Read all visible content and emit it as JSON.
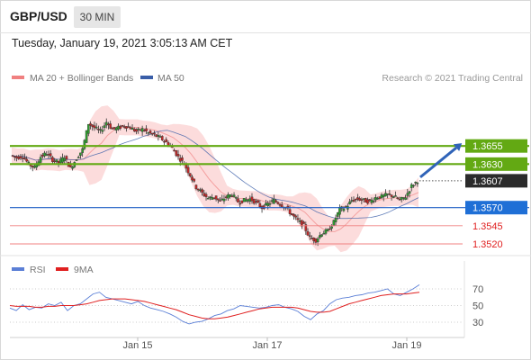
{
  "header": {
    "symbol": "GBP/USD",
    "interval": "30 MIN"
  },
  "timestamp": "Tuesday, January 19, 2021 3:05:13 AM CET",
  "chart_data": [
    {
      "type": "candlestick",
      "title": "",
      "legend": [
        {
          "name": "MA 20 + Bollinger Bands",
          "color": "#f08080"
        },
        {
          "name": "MA 50",
          "color": "#3a5ea8"
        }
      ],
      "legend_placement": "top-left",
      "watermark": "Research © 2021 Trading Central",
      "last_price": 1.3607,
      "ylim": [
        1.3505,
        1.3705
      ],
      "x_ticks": [
        "Jan 15",
        "Jan 17",
        "Jan 19"
      ],
      "levels": [
        {
          "label": "1.3655",
          "value": 1.3655,
          "kind": "resistance"
        },
        {
          "label": "1.3630",
          "value": 1.363,
          "kind": "resistance"
        },
        {
          "label": "1.3607",
          "value": 1.3607,
          "kind": "last"
        },
        {
          "label": "1.3570",
          "value": 1.357,
          "kind": "pivot"
        },
        {
          "label": "1.3545",
          "value": 1.3545,
          "kind": "support"
        },
        {
          "label": "1.3520",
          "value": 1.352,
          "kind": "support"
        }
      ],
      "price_path": [
        1.3642,
        1.3639,
        1.3641,
        1.363,
        1.3625,
        1.364,
        1.3645,
        1.3636,
        1.3632,
        1.364,
        1.3624,
        1.3638,
        1.365,
        1.3686,
        1.368,
        1.3675,
        1.3688,
        1.3678,
        1.368,
        1.3683,
        1.368,
        1.3675,
        1.3678,
        1.3673,
        1.367,
        1.3666,
        1.366,
        1.3652,
        1.364,
        1.363,
        1.3615,
        1.3598,
        1.359,
        1.3583,
        1.3585,
        1.3578,
        1.3585,
        1.3588,
        1.3578,
        1.358,
        1.3582,
        1.3577,
        1.357,
        1.3575,
        1.358,
        1.3575,
        1.357,
        1.356,
        1.3552,
        1.3545,
        1.3528,
        1.3525,
        1.3535,
        1.3538,
        1.355,
        1.3568,
        1.357,
        1.358,
        1.3582,
        1.358,
        1.3578,
        1.3584,
        1.3585,
        1.3588,
        1.3586,
        1.358,
        1.3585,
        1.36,
        1.3607
      ],
      "projection": {
        "from": 1.3607,
        "to": 1.3655
      }
    },
    {
      "type": "line",
      "title": "",
      "legend": [
        {
          "name": "RSI",
          "color": "#5b7fd6"
        },
        {
          "name": "9MA",
          "color": "#e02020"
        }
      ],
      "legend_placement": "top-left",
      "ylim": [
        20,
        80
      ],
      "y_ticks": [
        70,
        50,
        30
      ],
      "rsi": [
        47,
        44,
        51,
        45,
        48,
        47,
        52,
        50,
        54,
        44,
        50,
        52,
        58,
        64,
        66,
        60,
        58,
        56,
        54,
        52,
        55,
        50,
        47,
        45,
        43,
        40,
        36,
        31,
        28,
        30,
        31,
        34,
        38,
        40,
        44,
        46,
        50,
        49,
        48,
        47,
        48,
        50,
        51,
        48,
        46,
        43,
        37,
        33,
        40,
        44,
        52,
        57,
        59,
        60,
        62,
        63,
        65,
        66,
        68,
        70,
        64,
        62,
        66,
        70,
        75
      ],
      "ma9": [
        50,
        49,
        49,
        49,
        48,
        48,
        49,
        49,
        50,
        50,
        50,
        51,
        52,
        54,
        56,
        57,
        58,
        58,
        58,
        57,
        56,
        55,
        53,
        51,
        49,
        47,
        45,
        42,
        39,
        37,
        35,
        34,
        34,
        35,
        36,
        38,
        40,
        42,
        44,
        46,
        47,
        48,
        48,
        48,
        48,
        47,
        45,
        43,
        42,
        42,
        43,
        46,
        49,
        52,
        54,
        56,
        58,
        60,
        62,
        63,
        64,
        64,
        64,
        65,
        66
      ]
    }
  ]
}
